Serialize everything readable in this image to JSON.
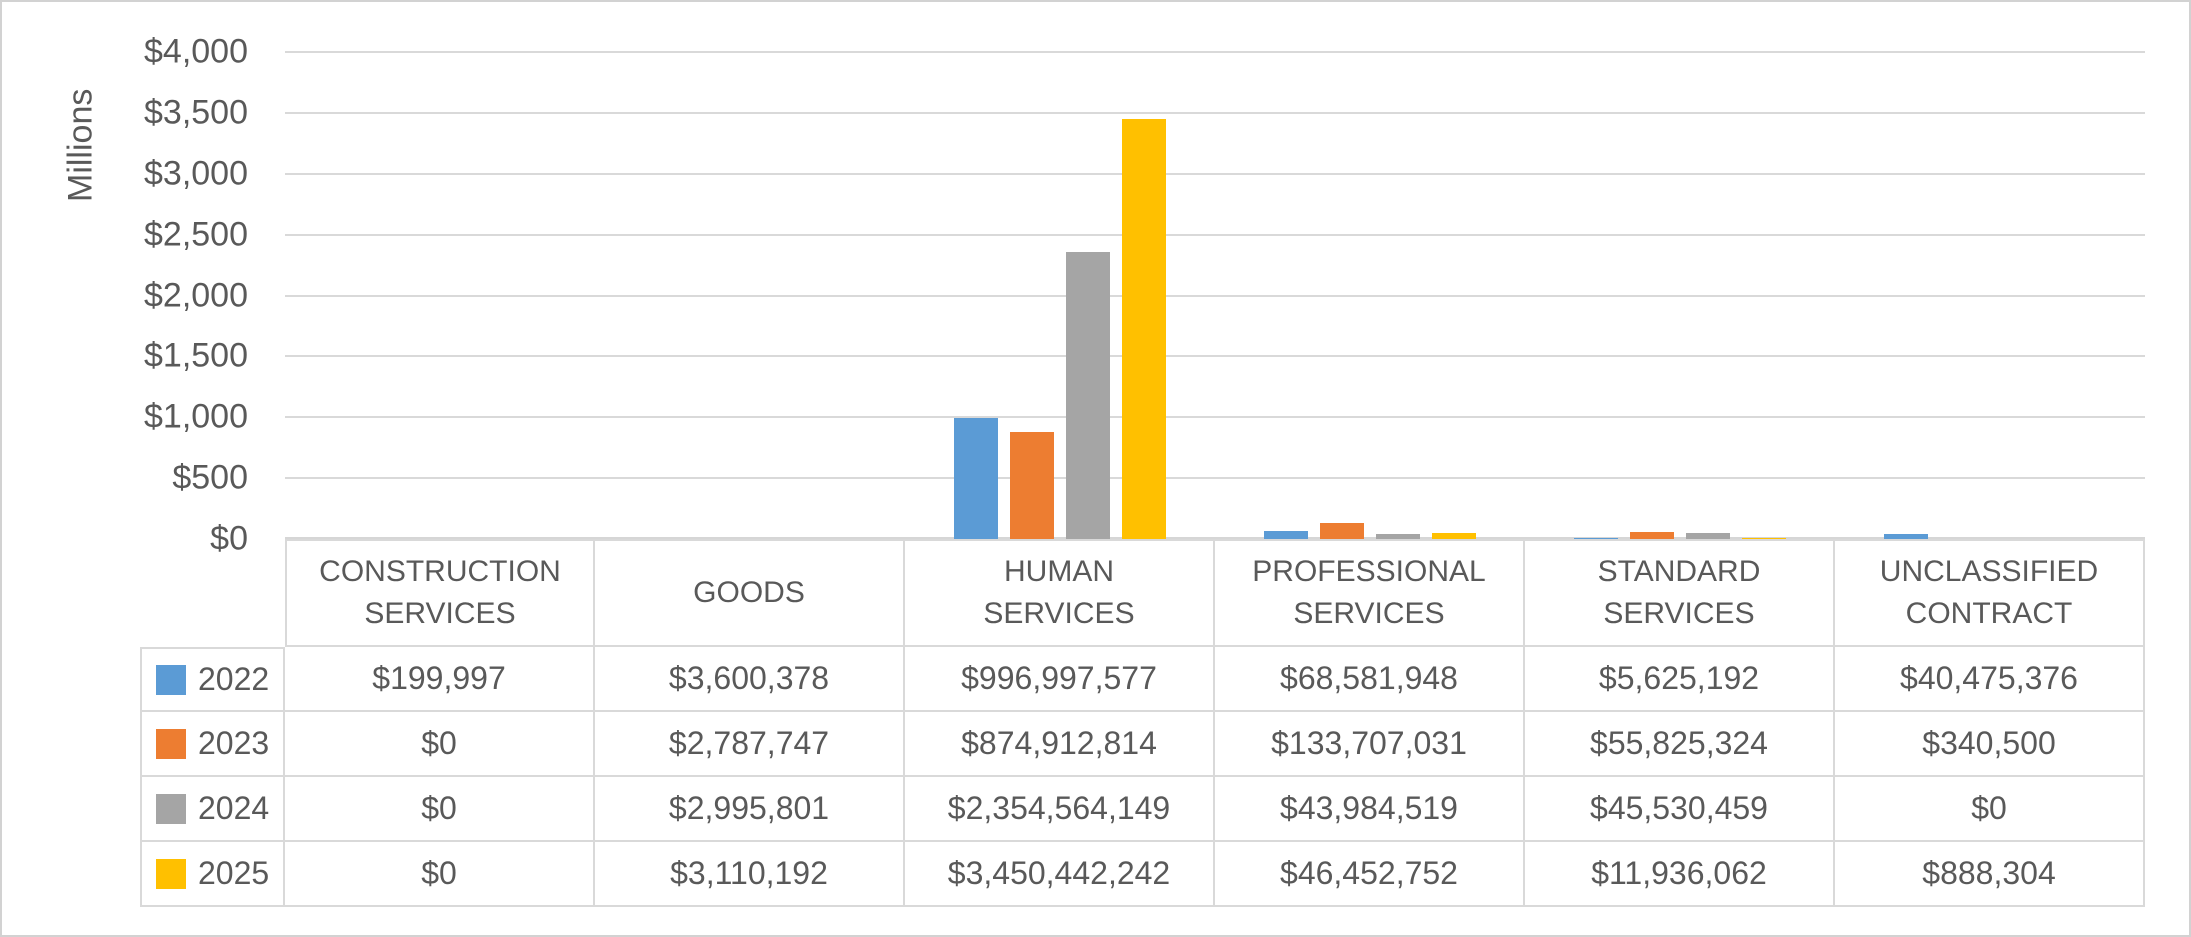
{
  "chart_data": {
    "type": "bar",
    "title": "",
    "xlabel": "",
    "ylabel": "Millions",
    "unit": "USD",
    "categories": [
      "CONSTRUCTION SERVICES",
      "GOODS",
      "HUMAN SERVICES",
      "PROFESSIONAL SERVICES",
      "STANDARD SERVICES",
      "UNCLASSIFIED CONTRACT"
    ],
    "series": [
      {
        "name": "2022",
        "color": "#5b9bd5",
        "values": [
          199997,
          3600378,
          996997577,
          68581948,
          5625192,
          40475376
        ]
      },
      {
        "name": "2023",
        "color": "#ed7d31",
        "values": [
          0,
          2787747,
          874912814,
          133707031,
          55825324,
          340500
        ]
      },
      {
        "name": "2024",
        "color": "#a5a5a5",
        "values": [
          0,
          2995801,
          2354564149,
          43984519,
          45530459,
          0
        ]
      },
      {
        "name": "2025",
        "color": "#ffc000",
        "values": [
          0,
          3110192,
          3450442242,
          46452752,
          11936062,
          888304
        ]
      }
    ],
    "y_ticks": [
      "$4,000",
      "$3,500",
      "$3,000",
      "$2,500",
      "$2,000",
      "$1,500",
      "$1,000",
      "$500",
      "$0"
    ],
    "ylim_millions": [
      0,
      4000
    ],
    "grid": true,
    "legend_position": "attached-data-table-left"
  },
  "y_axis": {
    "title": "Millions"
  },
  "table": {
    "headers": [
      [
        "CONSTRUCTION",
        "SERVICES"
      ],
      [
        "GOODS"
      ],
      [
        "HUMAN",
        "SERVICES"
      ],
      [
        "PROFESSIONAL",
        "SERVICES"
      ],
      [
        "STANDARD",
        "SERVICES"
      ],
      [
        "UNCLASSIFIED",
        "CONTRACT"
      ]
    ],
    "rows": [
      {
        "year": "2022",
        "swatch": "#5b9bd5",
        "cells": [
          "$199,997",
          "$3,600,378",
          "$996,997,577",
          "$68,581,948",
          "$5,625,192",
          "$40,475,376"
        ]
      },
      {
        "year": "2023",
        "swatch": "#ed7d31",
        "cells": [
          "$0",
          "$2,787,747",
          "$874,912,814",
          "$133,707,031",
          "$55,825,324",
          "$340,500"
        ]
      },
      {
        "year": "2024",
        "swatch": "#a5a5a5",
        "cells": [
          "$0",
          "$2,995,801",
          "$2,354,564,149",
          "$43,984,519",
          "$45,530,459",
          "$0"
        ]
      },
      {
        "year": "2025",
        "swatch": "#ffc000",
        "cells": [
          "$0",
          "$3,110,192",
          "$3,450,442,242",
          "$46,452,752",
          "$11,936,062",
          "$888,304"
        ]
      }
    ]
  },
  "colors": {
    "series_2022": "#5b9bd5",
    "series_2023": "#ed7d31",
    "series_2024": "#a5a5a5",
    "series_2025": "#ffc000",
    "text": "#595959",
    "gridline": "#d9d9d9",
    "table_border": "#d9d9d9",
    "frame_border": "#d2d2d2"
  }
}
